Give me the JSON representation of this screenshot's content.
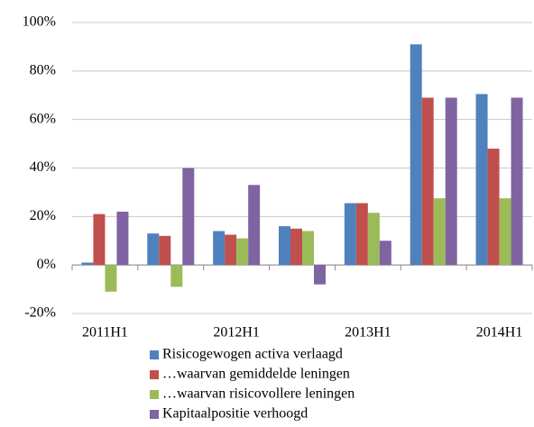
{
  "chart_data": {
    "type": "bar",
    "categories": [
      "2011H1",
      null,
      "2012H1",
      null,
      "2013H1",
      null,
      "2014H1"
    ],
    "series": [
      {
        "name": "Risicogewogen activa verlaagd",
        "color": "#4f81bd",
        "values": [
          1,
          13,
          14,
          16,
          25.5,
          91,
          70.5
        ]
      },
      {
        "name": "…waarvan gemiddelde leningen",
        "color": "#c0504d",
        "values": [
          21,
          12,
          12.5,
          15,
          25.5,
          69,
          48
        ]
      },
      {
        "name": "…waarvan risicovollere leningen",
        "color": "#9bbb59",
        "values": [
          -11,
          -9,
          11,
          14,
          21.5,
          27.5,
          27.5
        ]
      },
      {
        "name": "Kapitaalpositie verhoogd",
        "color": "#8064a2",
        "values": [
          22,
          40,
          33,
          -8,
          10,
          69,
          69
        ]
      }
    ],
    "ylim": [
      -20,
      100
    ],
    "yticks": [
      {
        "value": -20,
        "label": "-20%"
      },
      {
        "value": 0,
        "label": "0%"
      },
      {
        "value": 20,
        "label": "20%"
      },
      {
        "value": 40,
        "label": "40%"
      },
      {
        "value": 60,
        "label": "60%"
      },
      {
        "value": 80,
        "label": "80%"
      },
      {
        "value": 100,
        "label": "100%"
      }
    ],
    "grid": true,
    "legend": "bottom"
  }
}
